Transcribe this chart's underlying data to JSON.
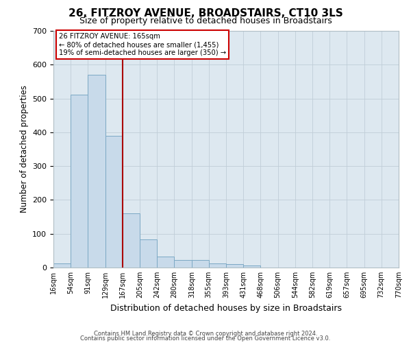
{
  "title": "26, FITZROY AVENUE, BROADSTAIRS, CT10 3LS",
  "subtitle": "Size of property relative to detached houses in Broadstairs",
  "xlabel": "Distribution of detached houses by size in Broadstairs",
  "ylabel": "Number of detached properties",
  "bar_color": "#c8daea",
  "bar_edge_color": "#7ba8c4",
  "bin_edges": [
    16,
    54,
    91,
    129,
    167,
    205,
    242,
    280,
    318,
    355,
    393,
    431,
    468,
    506,
    544,
    582,
    619,
    657,
    695,
    732,
    770
  ],
  "bar_heights": [
    13,
    511,
    570,
    390,
    160,
    83,
    33,
    22,
    22,
    13,
    10,
    7,
    0,
    0,
    0,
    0,
    0,
    0,
    0,
    0
  ],
  "tick_labels": [
    "16sqm",
    "54sqm",
    "91sqm",
    "129sqm",
    "167sqm",
    "205sqm",
    "242sqm",
    "280sqm",
    "318sqm",
    "355sqm",
    "393sqm",
    "431sqm",
    "468sqm",
    "506sqm",
    "544sqm",
    "582sqm",
    "619sqm",
    "657sqm",
    "695sqm",
    "732sqm",
    "770sqm"
  ],
  "vline_x": 167,
  "vline_color": "#aa0000",
  "annotation_line1": "26 FITZROY AVENUE: 165sqm",
  "annotation_line2": "← 80% of detached houses are smaller (1,455)",
  "annotation_line3": "19% of semi-detached houses are larger (350) →",
  "annotation_box_color": "#ffffff",
  "annotation_box_edge": "#cc0000",
  "ylim": [
    0,
    700
  ],
  "grid_color": "#c0cdd8",
  "plot_bg_color": "#dde8f0",
  "fig_bg_color": "#ffffff",
  "yticks": [
    0,
    100,
    200,
    300,
    400,
    500,
    600,
    700
  ],
  "footer1": "Contains HM Land Registry data © Crown copyright and database right 2024.",
  "footer2": "Contains public sector information licensed under the Open Government Licence v3.0."
}
